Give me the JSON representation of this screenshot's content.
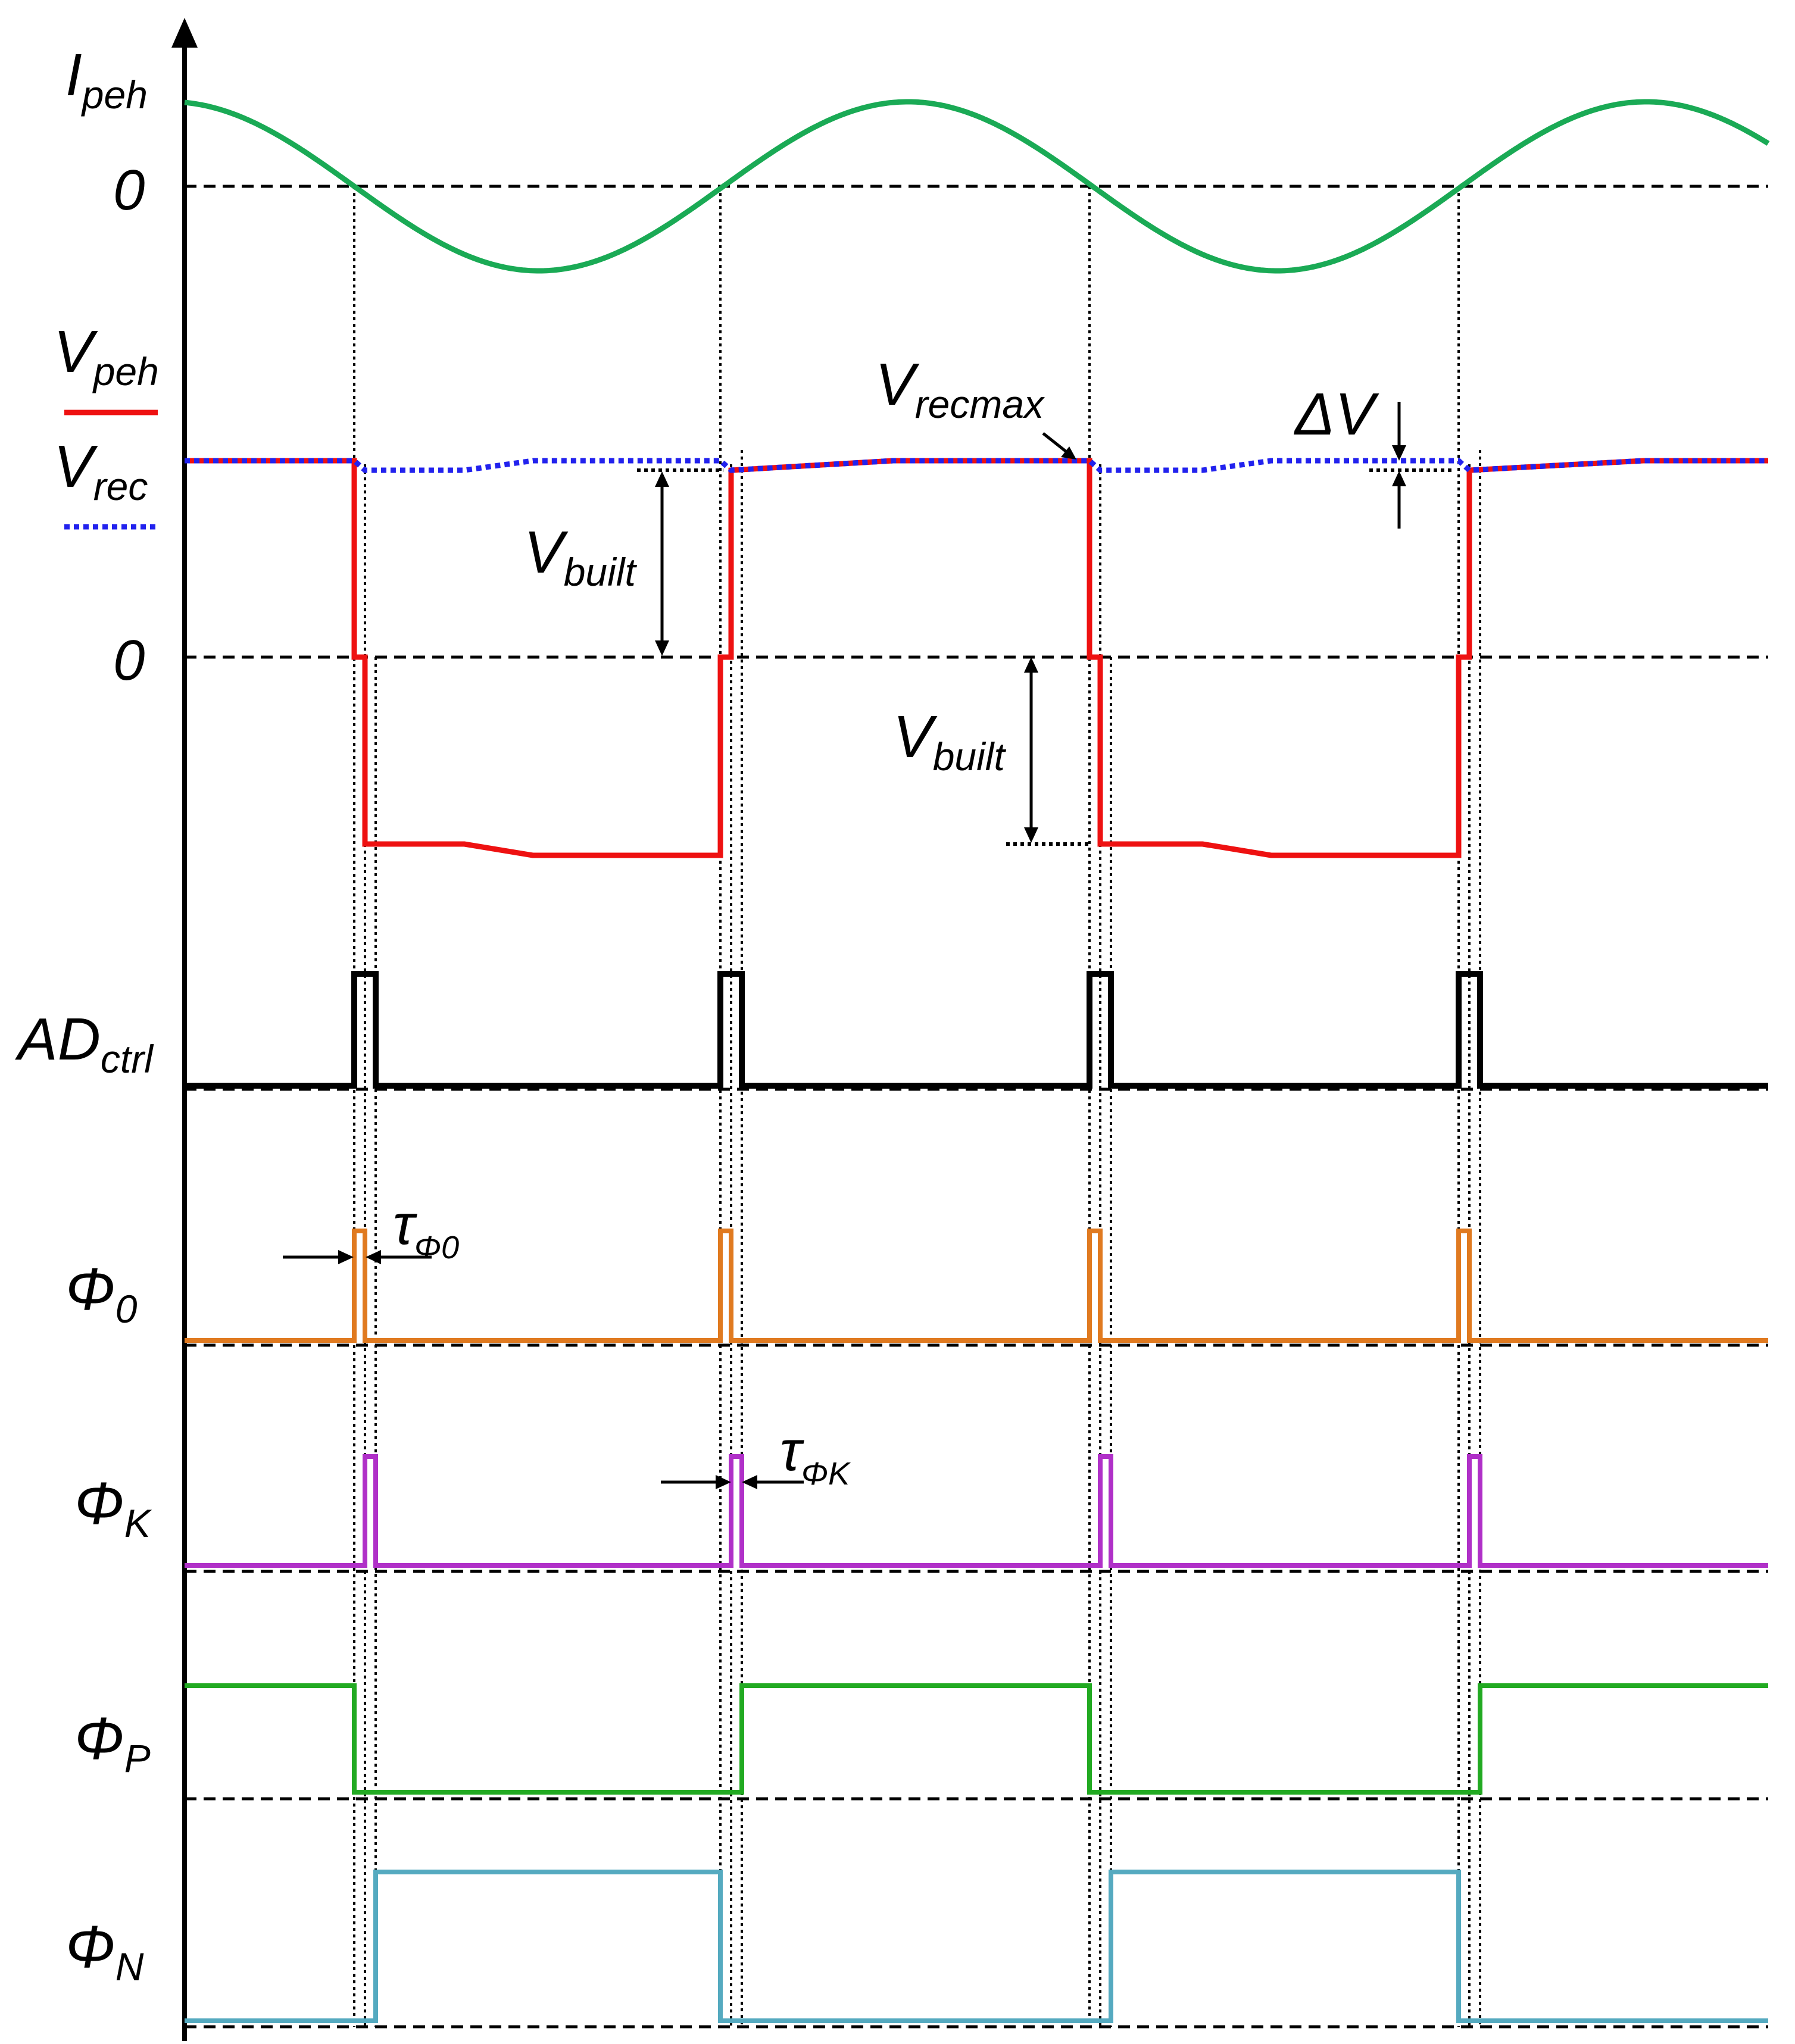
{
  "signals": {
    "ipeh": {
      "main": "I",
      "sub": "peh",
      "color": "#1aaa55"
    },
    "vpeh": {
      "main": "V",
      "sub": "peh",
      "color": "#ee1111"
    },
    "vrec": {
      "main": "V",
      "sub": "rec",
      "color": "#2222ee"
    },
    "adctrl": {
      "main": "AD",
      "sub": "ctrl",
      "color": "#000000"
    },
    "phi0": {
      "main": "Φ",
      "sub": "0",
      "color": "#e07a20"
    },
    "phik": {
      "main": "Φ",
      "sub": "K",
      "color": "#b030c8"
    },
    "phip": {
      "main": "Φ",
      "sub": "P",
      "color": "#22aa22"
    },
    "phin": {
      "main": "Φ",
      "sub": "N",
      "color": "#55aac0"
    }
  },
  "zero_labels": [
    "0",
    "0"
  ],
  "annotations": {
    "vrecmax": {
      "main": "V",
      "sub": "recmax"
    },
    "delta_v": {
      "main": "ΔV"
    },
    "vbuilt": {
      "main": "V",
      "sub": "built"
    },
    "tau_phi0": {
      "main": "τ",
      "sub": "Φ0"
    },
    "tau_phik": {
      "main": "τ",
      "sub": "ΦK"
    }
  }
}
